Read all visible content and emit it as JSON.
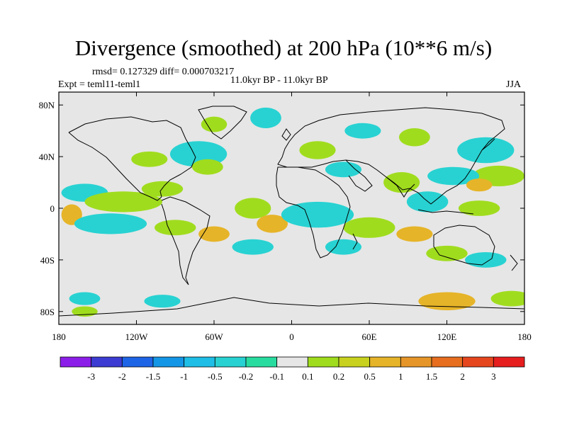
{
  "header": {
    "title": "Divergence (smoothed) at 200 hPa (10**6 m/s)",
    "stats": "rmsd= 0.127329  diff= 0.000703217",
    "experiment": "Expt = teml11-teml1",
    "period": "11.0kyr BP - 11.0kyr BP",
    "season": "JJA"
  },
  "chart_data": {
    "type": "heatmap",
    "title": "Divergence (smoothed) at 200 hPa (10**6 m/s)",
    "x_ticks": [
      "180",
      "120W",
      "60W",
      "0",
      "60E",
      "120E",
      "180"
    ],
    "x_tick_values": [
      -180,
      -120,
      -60,
      0,
      60,
      120,
      180
    ],
    "y_ticks": [
      "80N",
      "40N",
      "0",
      "40S",
      "80S"
    ],
    "y_tick_values": [
      80,
      40,
      0,
      -40,
      -80
    ],
    "xlim": [
      -180,
      180
    ],
    "ylim": [
      -90,
      90
    ],
    "colorbar": {
      "labels": [
        "-3",
        "-2",
        "-1.5",
        "-1",
        "-0.5",
        "-0.2",
        "-0.1",
        "0.1",
        "0.2",
        "0.5",
        "1",
        "1.5",
        "2",
        "3"
      ],
      "colors": [
        "#8b1ee8",
        "#3c3cd2",
        "#1e64e6",
        "#1496e6",
        "#1ebee6",
        "#28d2d2",
        "#28dca0",
        "#e6e6e6",
        "#a0dc1e",
        "#c8d21e",
        "#e6b428",
        "#e69628",
        "#e66e1e",
        "#e6461e",
        "#e61e1e"
      ]
    },
    "features": [
      {
        "label": "teal",
        "lon": -20,
        "lat": 70,
        "rx": 12,
        "ry": 8
      },
      {
        "label": "green",
        "lon": -60,
        "lat": 65,
        "rx": 10,
        "ry": 6
      },
      {
        "label": "teal",
        "lon": -72,
        "lat": 42,
        "rx": 22,
        "ry": 10
      },
      {
        "label": "green",
        "lon": -110,
        "lat": 38,
        "rx": 14,
        "ry": 6
      },
      {
        "label": "green",
        "lon": -65,
        "lat": 32,
        "rx": 12,
        "ry": 6
      },
      {
        "label": "green",
        "lon": 20,
        "lat": 45,
        "rx": 14,
        "ry": 7
      },
      {
        "label": "teal",
        "lon": 55,
        "lat": 60,
        "rx": 14,
        "ry": 6
      },
      {
        "label": "green",
        "lon": 95,
        "lat": 55,
        "rx": 12,
        "ry": 7
      },
      {
        "label": "teal",
        "lon": 150,
        "lat": 45,
        "rx": 22,
        "ry": 10
      },
      {
        "label": "green",
        "lon": 160,
        "lat": 25,
        "rx": 20,
        "ry": 8
      },
      {
        "label": "teal",
        "lon": 125,
        "lat": 25,
        "rx": 20,
        "ry": 7
      },
      {
        "label": "orange",
        "lon": 145,
        "lat": 18,
        "rx": 10,
        "ry": 5
      },
      {
        "label": "green",
        "lon": 85,
        "lat": 20,
        "rx": 14,
        "ry": 8
      },
      {
        "label": "teal",
        "lon": 105,
        "lat": 5,
        "rx": 16,
        "ry": 8
      },
      {
        "label": "green",
        "lon": 145,
        "lat": 0,
        "rx": 16,
        "ry": 6
      },
      {
        "label": "teal",
        "lon": -160,
        "lat": 12,
        "rx": 18,
        "ry": 7
      },
      {
        "label": "green",
        "lon": -130,
        "lat": 5,
        "rx": 30,
        "ry": 8
      },
      {
        "label": "orange",
        "lon": -170,
        "lat": -5,
        "rx": 8,
        "ry": 8
      },
      {
        "label": "teal",
        "lon": -140,
        "lat": -12,
        "rx": 28,
        "ry": 8
      },
      {
        "label": "green",
        "lon": -100,
        "lat": 15,
        "rx": 16,
        "ry": 6
      },
      {
        "label": "green",
        "lon": -30,
        "lat": 0,
        "rx": 14,
        "ry": 8
      },
      {
        "label": "orange",
        "lon": -15,
        "lat": -12,
        "rx": 12,
        "ry": 7
      },
      {
        "label": "teal",
        "lon": 20,
        "lat": -5,
        "rx": 28,
        "ry": 10
      },
      {
        "label": "teal",
        "lon": 40,
        "lat": 30,
        "rx": 14,
        "ry": 6
      },
      {
        "label": "green",
        "lon": 60,
        "lat": -15,
        "rx": 20,
        "ry": 8
      },
      {
        "label": "orange",
        "lon": 95,
        "lat": -20,
        "rx": 14,
        "ry": 6
      },
      {
        "label": "teal",
        "lon": 40,
        "lat": -30,
        "rx": 14,
        "ry": 6
      },
      {
        "label": "green",
        "lon": -90,
        "lat": -15,
        "rx": 16,
        "ry": 6
      },
      {
        "label": "orange",
        "lon": -60,
        "lat": -20,
        "rx": 12,
        "ry": 6
      },
      {
        "label": "teal",
        "lon": -30,
        "lat": -30,
        "rx": 16,
        "ry": 6
      },
      {
        "label": "green",
        "lon": 120,
        "lat": -35,
        "rx": 16,
        "ry": 6
      },
      {
        "label": "teal",
        "lon": 150,
        "lat": -40,
        "rx": 16,
        "ry": 6
      },
      {
        "label": "orange",
        "lon": 120,
        "lat": -72,
        "rx": 22,
        "ry": 7
      },
      {
        "label": "green",
        "lon": 170,
        "lat": -70,
        "rx": 16,
        "ry": 6
      },
      {
        "label": "teal",
        "lon": -160,
        "lat": -70,
        "rx": 12,
        "ry": 5
      },
      {
        "label": "green",
        "lon": -160,
        "lat": -80,
        "rx": 10,
        "ry": 4
      },
      {
        "label": "teal",
        "lon": -100,
        "lat": -72,
        "rx": 14,
        "ry": 5
      }
    ]
  }
}
